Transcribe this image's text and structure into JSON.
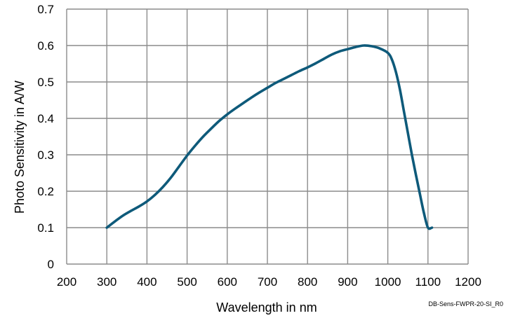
{
  "chart_data": {
    "type": "line",
    "title": "",
    "xlabel": "Wavelength in nm",
    "ylabel": "Photo Sensitivity in A/W",
    "xlim": [
      200,
      1200
    ],
    "ylim": [
      0,
      0.7
    ],
    "x_ticks": [
      "200",
      "300",
      "400",
      "500",
      "600",
      "700",
      "800",
      "900",
      "1000",
      "1100",
      "1200"
    ],
    "y_ticks": [
      "0",
      "0.1",
      "0.2",
      "0.3",
      "0.4",
      "0.5",
      "0.6",
      "0.7"
    ],
    "grid": true,
    "legend": "none",
    "series": [
      {
        "color": "#0e5a7a",
        "x": [
          300,
          320,
          340,
          360,
          380,
          400,
          420,
          440,
          460,
          480,
          500,
          520,
          540,
          560,
          580,
          600,
          620,
          640,
          660,
          680,
          700,
          720,
          740,
          760,
          780,
          800,
          820,
          840,
          860,
          880,
          900,
          920,
          940,
          960,
          980,
          1000,
          1010,
          1020,
          1030,
          1040,
          1050,
          1060,
          1070,
          1080,
          1090,
          1100,
          1110
        ],
        "y": [
          0.1,
          0.117,
          0.133,
          0.146,
          0.158,
          0.172,
          0.19,
          0.212,
          0.238,
          0.268,
          0.298,
          0.325,
          0.35,
          0.372,
          0.393,
          0.411,
          0.427,
          0.442,
          0.457,
          0.471,
          0.484,
          0.497,
          0.508,
          0.519,
          0.53,
          0.54,
          0.551,
          0.563,
          0.575,
          0.584,
          0.59,
          0.596,
          0.6,
          0.598,
          0.592,
          0.58,
          0.562,
          0.528,
          0.48,
          0.42,
          0.36,
          0.3,
          0.245,
          0.192,
          0.14,
          0.1,
          0.1
        ]
      }
    ]
  },
  "footnote": "DB-Sens-FWPR-20-SI_R0"
}
